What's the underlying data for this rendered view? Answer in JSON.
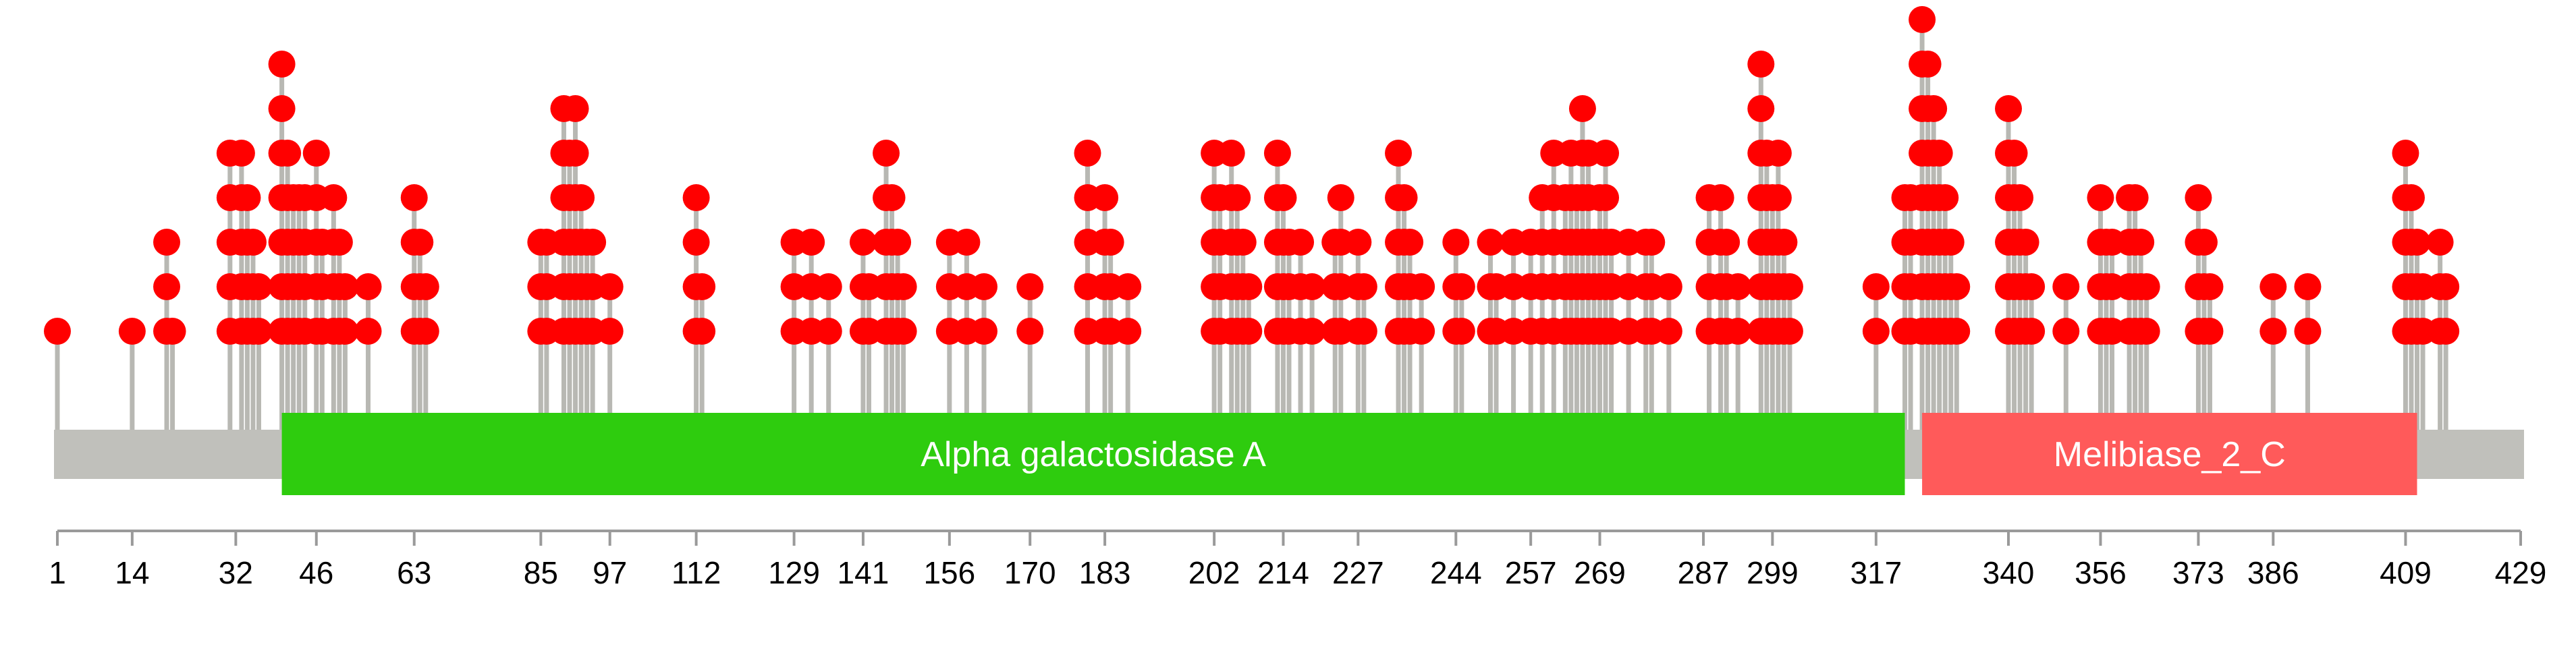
{
  "chart_data": {
    "type": "lollipop",
    "protein_length": 429,
    "x_ticks": [
      1,
      14,
      32,
      46,
      63,
      85,
      97,
      112,
      129,
      141,
      156,
      170,
      183,
      202,
      214,
      227,
      244,
      257,
      269,
      287,
      299,
      317,
      340,
      356,
      373,
      386,
      409,
      429
    ],
    "domains": [
      {
        "name": "Alpha galactosidase A",
        "start": 40,
        "end": 322,
        "color": "#2ecc0e"
      },
      {
        "name": "Melibiase_2_C",
        "start": 325,
        "end": 411,
        "color": "#ff5a5a"
      }
    ],
    "mutations": [
      {
        "pos": 1,
        "count": 1
      },
      {
        "pos": 14,
        "count": 1
      },
      {
        "pos": 20,
        "count": 3
      },
      {
        "pos": 21,
        "count": 1
      },
      {
        "pos": 31,
        "count": 5
      },
      {
        "pos": 33,
        "count": 5
      },
      {
        "pos": 34,
        "count": 4
      },
      {
        "pos": 35,
        "count": 3
      },
      {
        "pos": 36,
        "count": 2
      },
      {
        "pos": 40,
        "count": 7
      },
      {
        "pos": 41,
        "count": 5
      },
      {
        "pos": 42,
        "count": 4
      },
      {
        "pos": 43,
        "count": 4
      },
      {
        "pos": 44,
        "count": 4
      },
      {
        "pos": 46,
        "count": 5
      },
      {
        "pos": 47,
        "count": 3
      },
      {
        "pos": 49,
        "count": 4
      },
      {
        "pos": 50,
        "count": 3
      },
      {
        "pos": 51,
        "count": 2
      },
      {
        "pos": 55,
        "count": 2
      },
      {
        "pos": 63,
        "count": 4
      },
      {
        "pos": 64,
        "count": 3
      },
      {
        "pos": 65,
        "count": 2
      },
      {
        "pos": 85,
        "count": 3
      },
      {
        "pos": 86,
        "count": 3
      },
      {
        "pos": 89,
        "count": 6
      },
      {
        "pos": 90,
        "count": 5
      },
      {
        "pos": 91,
        "count": 6
      },
      {
        "pos": 92,
        "count": 4
      },
      {
        "pos": 93,
        "count": 3
      },
      {
        "pos": 94,
        "count": 3
      },
      {
        "pos": 97,
        "count": 2
      },
      {
        "pos": 112,
        "count": 4
      },
      {
        "pos": 113,
        "count": 2
      },
      {
        "pos": 129,
        "count": 3
      },
      {
        "pos": 132,
        "count": 3
      },
      {
        "pos": 135,
        "count": 2
      },
      {
        "pos": 141,
        "count": 3
      },
      {
        "pos": 142,
        "count": 2
      },
      {
        "pos": 145,
        "count": 5
      },
      {
        "pos": 146,
        "count": 4
      },
      {
        "pos": 147,
        "count": 3
      },
      {
        "pos": 148,
        "count": 2
      },
      {
        "pos": 156,
        "count": 3
      },
      {
        "pos": 159,
        "count": 3
      },
      {
        "pos": 162,
        "count": 2
      },
      {
        "pos": 170,
        "count": 2
      },
      {
        "pos": 180,
        "count": 5
      },
      {
        "pos": 183,
        "count": 4
      },
      {
        "pos": 184,
        "count": 3
      },
      {
        "pos": 187,
        "count": 2
      },
      {
        "pos": 202,
        "count": 5
      },
      {
        "pos": 203,
        "count": 4
      },
      {
        "pos": 205,
        "count": 5
      },
      {
        "pos": 206,
        "count": 4
      },
      {
        "pos": 207,
        "count": 3
      },
      {
        "pos": 208,
        "count": 2
      },
      {
        "pos": 213,
        "count": 5
      },
      {
        "pos": 214,
        "count": 4
      },
      {
        "pos": 215,
        "count": 3
      },
      {
        "pos": 217,
        "count": 3
      },
      {
        "pos": 219,
        "count": 2
      },
      {
        "pos": 223,
        "count": 3
      },
      {
        "pos": 224,
        "count": 4
      },
      {
        "pos": 227,
        "count": 3
      },
      {
        "pos": 228,
        "count": 2
      },
      {
        "pos": 234,
        "count": 5
      },
      {
        "pos": 235,
        "count": 4
      },
      {
        "pos": 236,
        "count": 3
      },
      {
        "pos": 238,
        "count": 2
      },
      {
        "pos": 244,
        "count": 3
      },
      {
        "pos": 245,
        "count": 2
      },
      {
        "pos": 250,
        "count": 3
      },
      {
        "pos": 251,
        "count": 2
      },
      {
        "pos": 254,
        "count": 3
      },
      {
        "pos": 257,
        "count": 3
      },
      {
        "pos": 259,
        "count": 4
      },
      {
        "pos": 261,
        "count": 5
      },
      {
        "pos": 263,
        "count": 4
      },
      {
        "pos": 264,
        "count": 5
      },
      {
        "pos": 265,
        "count": 4
      },
      {
        "pos": 266,
        "count": 6
      },
      {
        "pos": 267,
        "count": 5
      },
      {
        "pos": 268,
        "count": 3
      },
      {
        "pos": 269,
        "count": 4
      },
      {
        "pos": 270,
        "count": 5
      },
      {
        "pos": 271,
        "count": 3
      },
      {
        "pos": 274,
        "count": 3
      },
      {
        "pos": 277,
        "count": 3
      },
      {
        "pos": 278,
        "count": 3
      },
      {
        "pos": 281,
        "count": 2
      },
      {
        "pos": 288,
        "count": 4
      },
      {
        "pos": 290,
        "count": 4
      },
      {
        "pos": 291,
        "count": 3
      },
      {
        "pos": 293,
        "count": 2
      },
      {
        "pos": 297,
        "count": 7
      },
      {
        "pos": 298,
        "count": 5
      },
      {
        "pos": 299,
        "count": 4
      },
      {
        "pos": 300,
        "count": 5
      },
      {
        "pos": 301,
        "count": 3
      },
      {
        "pos": 302,
        "count": 2
      },
      {
        "pos": 317,
        "count": 2
      },
      {
        "pos": 322,
        "count": 4
      },
      {
        "pos": 323,
        "count": 4
      },
      {
        "pos": 325,
        "count": 8
      },
      {
        "pos": 326,
        "count": 7
      },
      {
        "pos": 327,
        "count": 6
      },
      {
        "pos": 328,
        "count": 5
      },
      {
        "pos": 329,
        "count": 4
      },
      {
        "pos": 330,
        "count": 3
      },
      {
        "pos": 331,
        "count": 2
      },
      {
        "pos": 340,
        "count": 6
      },
      {
        "pos": 341,
        "count": 5
      },
      {
        "pos": 342,
        "count": 4
      },
      {
        "pos": 343,
        "count": 3
      },
      {
        "pos": 344,
        "count": 2
      },
      {
        "pos": 350,
        "count": 2
      },
      {
        "pos": 356,
        "count": 4
      },
      {
        "pos": 357,
        "count": 3
      },
      {
        "pos": 358,
        "count": 3
      },
      {
        "pos": 361,
        "count": 4
      },
      {
        "pos": 362,
        "count": 4
      },
      {
        "pos": 363,
        "count": 3
      },
      {
        "pos": 364,
        "count": 2
      },
      {
        "pos": 373,
        "count": 4
      },
      {
        "pos": 374,
        "count": 3
      },
      {
        "pos": 375,
        "count": 2
      },
      {
        "pos": 386,
        "count": 2
      },
      {
        "pos": 392,
        "count": 2
      },
      {
        "pos": 409,
        "count": 5
      },
      {
        "pos": 410,
        "count": 4
      },
      {
        "pos": 411,
        "count": 3
      },
      {
        "pos": 412,
        "count": 2
      },
      {
        "pos": 415,
        "count": 3
      },
      {
        "pos": 416,
        "count": 2
      }
    ],
    "colors": {
      "backbone": "#c0c0bb",
      "stem": "#b8b8b3",
      "head": "#ff0000",
      "axis": "#9a9a9a"
    }
  }
}
